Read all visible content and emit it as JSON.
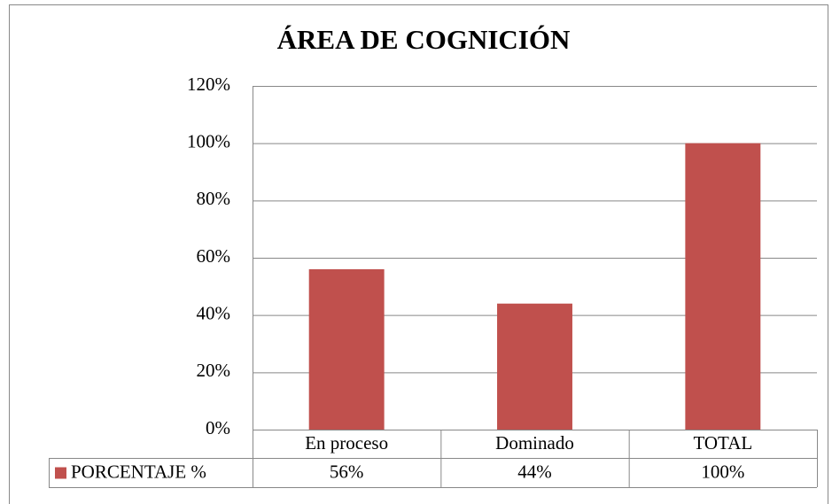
{
  "chart_data": {
    "type": "bar",
    "title": "ÁREA DE COGNICIÓN",
    "categories": [
      "En proceso",
      "Dominado",
      "TOTAL"
    ],
    "series": [
      {
        "name": "PORCENTAJE %",
        "color": "#c0504d",
        "values": [
          56,
          44,
          100
        ],
        "value_labels": [
          "56%",
          "44%",
          "100%"
        ]
      }
    ],
    "ylim": [
      0,
      120
    ],
    "yticks": [
      {
        "value": 0,
        "label": "0%"
      },
      {
        "value": 20,
        "label": "20%"
      },
      {
        "value": 40,
        "label": "40%"
      },
      {
        "value": 60,
        "label": "60%"
      },
      {
        "value": 80,
        "label": "80%"
      },
      {
        "value": 100,
        "label": "100%"
      },
      {
        "value": 120,
        "label": "120%"
      }
    ],
    "grid": true,
    "data_table": true
  }
}
